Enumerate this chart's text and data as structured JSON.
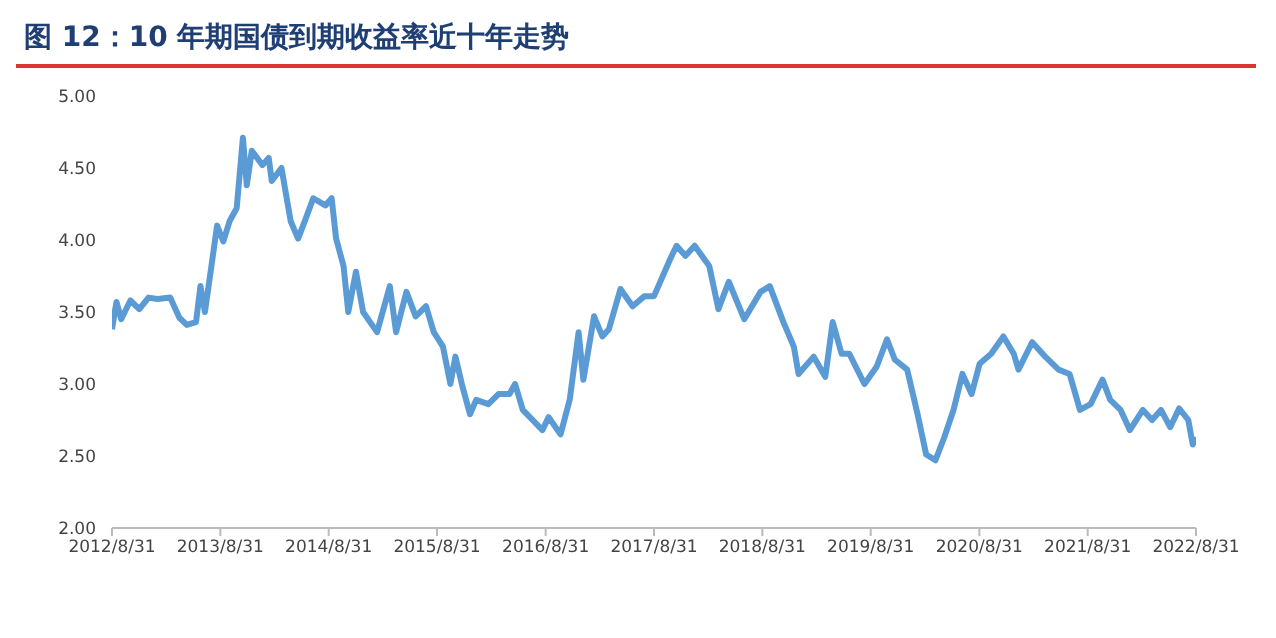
{
  "chart_data": {
    "type": "line",
    "title": "图 12：10 年期国债到期收益率近十年走势",
    "x": [
      "2012-08-31",
      "2012-09-15",
      "2012-10-01",
      "2012-11-01",
      "2012-12-01",
      "2013-01-01",
      "2013-02-01",
      "2013-03-15",
      "2013-04-15",
      "2013-05-10",
      "2013-06-10",
      "2013-06-25",
      "2013-07-10",
      "2013-08-01",
      "2013-08-20",
      "2013-09-10",
      "2013-10-01",
      "2013-10-25",
      "2013-11-15",
      "2013-11-28",
      "2013-12-15",
      "2014-01-20",
      "2014-02-10",
      "2014-02-20",
      "2014-03-25",
      "2014-04-25",
      "2014-05-20",
      "2014-06-15",
      "2014-07-10",
      "2014-08-20",
      "2014-09-10",
      "2014-09-25",
      "2014-10-20",
      "2014-11-05",
      "2014-12-01",
      "2014-12-25",
      "2015-02-10",
      "2015-03-25",
      "2015-04-15",
      "2015-05-20",
      "2015-06-20",
      "2015-07-25",
      "2015-08-20",
      "2015-09-20",
      "2015-10-15",
      "2015-11-01",
      "2015-11-25",
      "2015-12-20",
      "2016-01-10",
      "2016-02-20",
      "2016-03-25",
      "2016-05-01",
      "2016-05-20",
      "2016-06-15",
      "2016-08-20",
      "2016-09-10",
      "2016-10-20",
      "2016-11-20",
      "2016-12-20",
      "2017-01-05",
      "2017-02-10",
      "2017-03-10",
      "2017-04-01",
      "2017-05-10",
      "2017-06-20",
      "2017-07-30",
      "2017-08-31",
      "2017-10-25",
      "2017-11-15",
      "2017-12-15",
      "2018-01-15",
      "2018-03-05",
      "2018-04-05",
      "2018-05-10",
      "2018-07-01",
      "2018-08-25",
      "2018-09-25",
      "2018-11-10",
      "2018-12-15",
      "2018-12-31",
      "2019-02-20",
      "2019-03-31",
      "2019-04-25",
      "2019-05-25",
      "2019-06-20",
      "2019-08-10",
      "2019-09-20",
      "2019-10-25",
      "2019-11-20",
      "2020-01-01",
      "2020-02-05",
      "2020-03-05",
      "2020-04-05",
      "2020-05-05",
      "2020-06-05",
      "2020-07-05",
      "2020-08-05",
      "2020-09-01",
      "2020-10-10",
      "2020-11-20",
      "2020-12-25",
      "2021-01-10",
      "2021-02-25",
      "2021-04-10",
      "2021-05-25",
      "2021-07-01",
      "2021-08-05",
      "2021-09-10",
      "2021-10-20",
      "2021-11-15",
      "2021-12-20",
      "2022-01-20",
      "2022-03-05",
      "2022-04-05",
      "2022-05-05",
      "2022-06-05",
      "2022-07-05",
      "2022-08-05",
      "2022-08-20",
      "2022-08-31"
    ],
    "series": [
      {
        "color": "#5b9bd5",
        "values": [
          3.38,
          3.57,
          3.45,
          3.58,
          3.52,
          3.6,
          3.59,
          3.6,
          3.46,
          3.41,
          3.43,
          3.68,
          3.5,
          3.82,
          4.1,
          3.99,
          4.13,
          4.22,
          4.71,
          4.38,
          4.62,
          4.52,
          4.57,
          4.41,
          4.5,
          4.13,
          4.01,
          4.15,
          4.29,
          4.24,
          4.29,
          4.01,
          3.82,
          3.5,
          3.78,
          3.5,
          3.36,
          3.68,
          3.36,
          3.64,
          3.47,
          3.54,
          3.36,
          3.26,
          3.0,
          3.19,
          2.98,
          2.79,
          2.89,
          2.86,
          2.93,
          2.93,
          3.0,
          2.82,
          2.68,
          2.77,
          2.65,
          2.89,
          3.36,
          3.03,
          3.47,
          3.33,
          3.38,
          3.66,
          3.54,
          3.61,
          3.61,
          3.87,
          3.96,
          3.89,
          3.96,
          3.82,
          3.52,
          3.71,
          3.45,
          3.64,
          3.68,
          3.43,
          3.26,
          3.07,
          3.19,
          3.05,
          3.43,
          3.21,
          3.21,
          3.0,
          3.12,
          3.31,
          3.17,
          3.1,
          2.79,
          2.51,
          2.47,
          2.63,
          2.82,
          3.07,
          2.93,
          3.14,
          3.21,
          3.33,
          3.21,
          3.1,
          3.29,
          3.19,
          3.1,
          3.07,
          2.82,
          2.86,
          3.03,
          2.89,
          2.82,
          2.68,
          2.82,
          2.75,
          2.82,
          2.7,
          2.83,
          2.75,
          2.58,
          2.63
        ]
      }
    ],
    "xlim": [
      "2012-08-31",
      "2022-08-31"
    ],
    "xticks": [
      {
        "value": "2012-08-31",
        "label": "2012/8/31"
      },
      {
        "value": "2013-08-31",
        "label": "2013/8/31"
      },
      {
        "value": "2014-08-31",
        "label": "2014/8/31"
      },
      {
        "value": "2015-08-31",
        "label": "2015/8/31"
      },
      {
        "value": "2016-08-31",
        "label": "2016/8/31"
      },
      {
        "value": "2017-08-31",
        "label": "2017/8/31"
      },
      {
        "value": "2018-08-31",
        "label": "2018/8/31"
      },
      {
        "value": "2019-08-31",
        "label": "2019/8/31"
      },
      {
        "value": "2020-08-31",
        "label": "2020/8/31"
      },
      {
        "value": "2021-08-31",
        "label": "2021/8/31"
      },
      {
        "value": "2022-08-31",
        "label": "2022/8/31"
      }
    ],
    "ylim": [
      2,
      5
    ],
    "yticks": [
      {
        "value": 2,
        "label": "2.00"
      },
      {
        "value": 2.5,
        "label": "2.50"
      },
      {
        "value": 3,
        "label": "3.00"
      },
      {
        "value": 3.5,
        "label": "3.50"
      },
      {
        "value": 4,
        "label": "4.00"
      },
      {
        "value": 4.5,
        "label": "4.50"
      },
      {
        "value": 5,
        "label": "5.00"
      }
    ],
    "grid": false,
    "legend": false,
    "marker": "none",
    "line_style": "solid"
  }
}
